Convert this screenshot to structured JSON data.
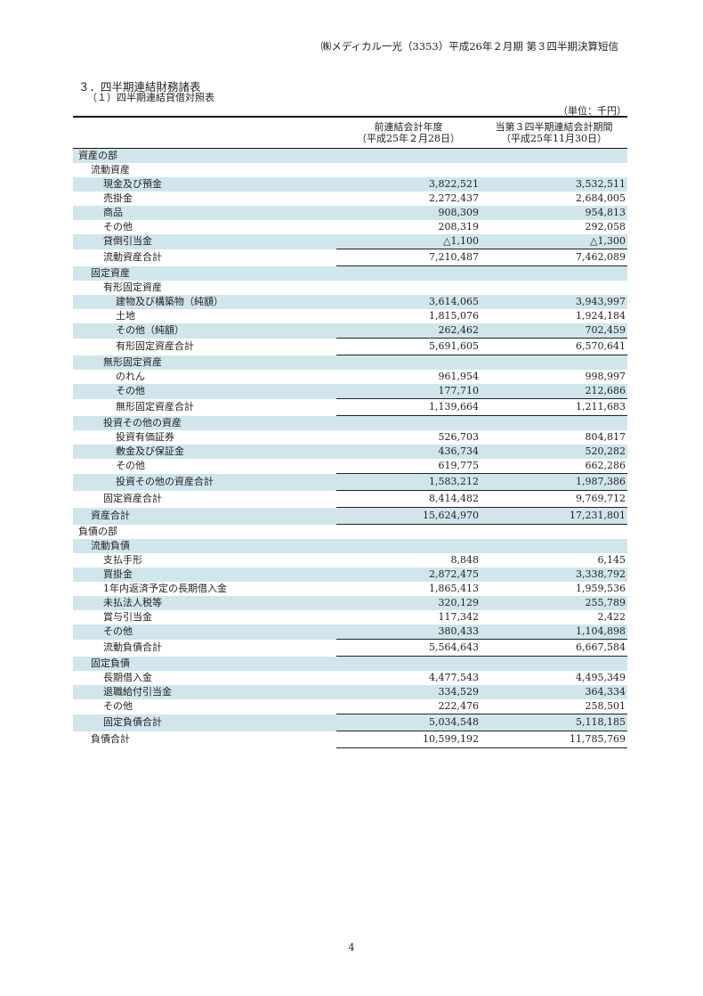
{
  "header": "㈱メディカル一光（3353）平成26年２月期 第３四半期決算短信",
  "title": "３．四半期連結財務諸表",
  "subtitle": "（１）四半期連結貸借対照表",
  "unit": "（単位：千円）",
  "columns": {
    "prev": [
      "前連結会計年度",
      "（平成25年２月28日）"
    ],
    "curr": [
      "当第３四半期連結会計期間",
      "（平成25年11月30日）"
    ]
  },
  "colors": {
    "shade": "#d0e6ec"
  },
  "rows": [
    {
      "label": "資産の部",
      "level": 0
    },
    {
      "label": "流動資産",
      "level": 1
    },
    {
      "label": "現金及び預金",
      "level": 2,
      "prev": "3,822,521",
      "curr": "3,532,511"
    },
    {
      "label": "売掛金",
      "level": 2,
      "prev": "2,272,437",
      "curr": "2,684,005"
    },
    {
      "label": "商品",
      "level": 2,
      "prev": "908,309",
      "curr": "954,813"
    },
    {
      "label": "その他",
      "level": 2,
      "prev": "208,319",
      "curr": "292,058"
    },
    {
      "label": "貸倒引当金",
      "level": 2,
      "prev": "△1,100",
      "curr": "△1,300"
    },
    {
      "label": "流動資産合計",
      "level": 2,
      "prev": "7,210,487",
      "curr": "7,462,089",
      "total": true
    },
    {
      "label": "固定資産",
      "level": 1
    },
    {
      "label": "有形固定資産",
      "level": 2
    },
    {
      "label": "建物及び構築物（純額）",
      "level": 3,
      "prev": "3,614,065",
      "curr": "3,943,997"
    },
    {
      "label": "土地",
      "level": 3,
      "prev": "1,815,076",
      "curr": "1,924,184"
    },
    {
      "label": "その他（純額）",
      "level": 3,
      "prev": "262,462",
      "curr": "702,459"
    },
    {
      "label": "有形固定資産合計",
      "level": 3,
      "prev": "5,691,605",
      "curr": "6,570,641",
      "total": true
    },
    {
      "label": "無形固定資産",
      "level": 2
    },
    {
      "label": "のれん",
      "level": 3,
      "prev": "961,954",
      "curr": "998,997"
    },
    {
      "label": "その他",
      "level": 3,
      "prev": "177,710",
      "curr": "212,686"
    },
    {
      "label": "無形固定資産合計",
      "level": 3,
      "prev": "1,139,664",
      "curr": "1,211,683",
      "total": true
    },
    {
      "label": "投資その他の資産",
      "level": 2
    },
    {
      "label": "投資有価証券",
      "level": 3,
      "prev": "526,703",
      "curr": "804,817"
    },
    {
      "label": "敷金及び保証金",
      "level": 3,
      "prev": "436,734",
      "curr": "520,282"
    },
    {
      "label": "その他",
      "level": 3,
      "prev": "619,775",
      "curr": "662,286"
    },
    {
      "label": "投資その他の資産合計",
      "level": 3,
      "prev": "1,583,212",
      "curr": "1,987,386",
      "total": true
    },
    {
      "label": "固定資産合計",
      "level": 2,
      "prev": "8,414,482",
      "curr": "9,769,712",
      "total": true
    },
    {
      "label": "資産合計",
      "level": 1,
      "prev": "15,624,970",
      "curr": "17,231,801",
      "total": true
    },
    {
      "label": "負債の部",
      "level": 0
    },
    {
      "label": "流動負債",
      "level": 1
    },
    {
      "label": "支払手形",
      "level": 2,
      "prev": "8,848",
      "curr": "6,145"
    },
    {
      "label": "買掛金",
      "level": 2,
      "prev": "2,872,475",
      "curr": "3,338,792"
    },
    {
      "label": "1年内返済予定の長期借入金",
      "level": 2,
      "prev": "1,865,413",
      "curr": "1,959,536"
    },
    {
      "label": "未払法人税等",
      "level": 2,
      "prev": "320,129",
      "curr": "255,789"
    },
    {
      "label": "賞与引当金",
      "level": 2,
      "prev": "117,342",
      "curr": "2,422"
    },
    {
      "label": "その他",
      "level": 2,
      "prev": "380,433",
      "curr": "1,104,898"
    },
    {
      "label": "流動負債合計",
      "level": 2,
      "prev": "5,564,643",
      "curr": "6,667,584",
      "total": true
    },
    {
      "label": "固定負債",
      "level": 1
    },
    {
      "label": "長期借入金",
      "level": 2,
      "prev": "4,477,543",
      "curr": "4,495,349"
    },
    {
      "label": "退職給付引当金",
      "level": 2,
      "prev": "334,529",
      "curr": "364,334"
    },
    {
      "label": "その他",
      "level": 2,
      "prev": "222,476",
      "curr": "258,501"
    },
    {
      "label": "固定負債合計",
      "level": 2,
      "prev": "5,034,548",
      "curr": "5,118,185",
      "total": true
    },
    {
      "label": "負債合計",
      "level": 1,
      "prev": "10,599,192",
      "curr": "11,785,769",
      "total": true
    }
  ],
  "page_number": "4"
}
